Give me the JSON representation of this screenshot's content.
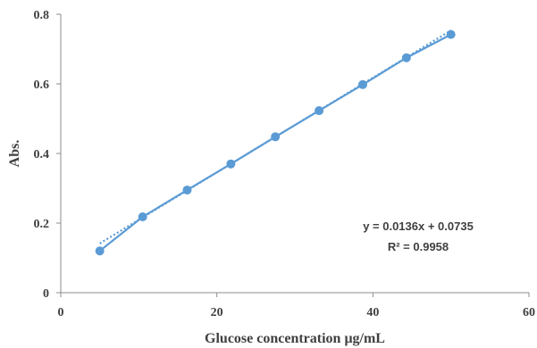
{
  "chart_data": {
    "type": "scatter",
    "title": "",
    "xlabel": "Glucose concentration μg/mL",
    "ylabel": "Abs.",
    "xlim": [
      0,
      60
    ],
    "ylim": [
      0,
      0.8
    ],
    "xticks": [
      "0",
      "20",
      "40",
      "60"
    ],
    "yticks": [
      "0",
      "0.2",
      "0.4",
      "0.6",
      "0.8"
    ],
    "grid": false,
    "series": [
      {
        "x": [
          5,
          10.5,
          16.2,
          21.8,
          27.5,
          33.1,
          38.7,
          44.3,
          50
        ],
        "y": [
          0.12,
          0.218,
          0.295,
          0.37,
          0.448,
          0.523,
          0.598,
          0.675,
          0.742
        ]
      }
    ],
    "trendline": {
      "style": "dotted",
      "slope": 0.0136,
      "intercept": 0.0735,
      "x_range": [
        5,
        50
      ]
    },
    "annotations": [
      "y = 0.0136x + 0.0735",
      "R² = 0.9958"
    ],
    "colors": {
      "series": "#5B9BD5",
      "axis": "#8C8C8C",
      "text": "#404040"
    }
  }
}
